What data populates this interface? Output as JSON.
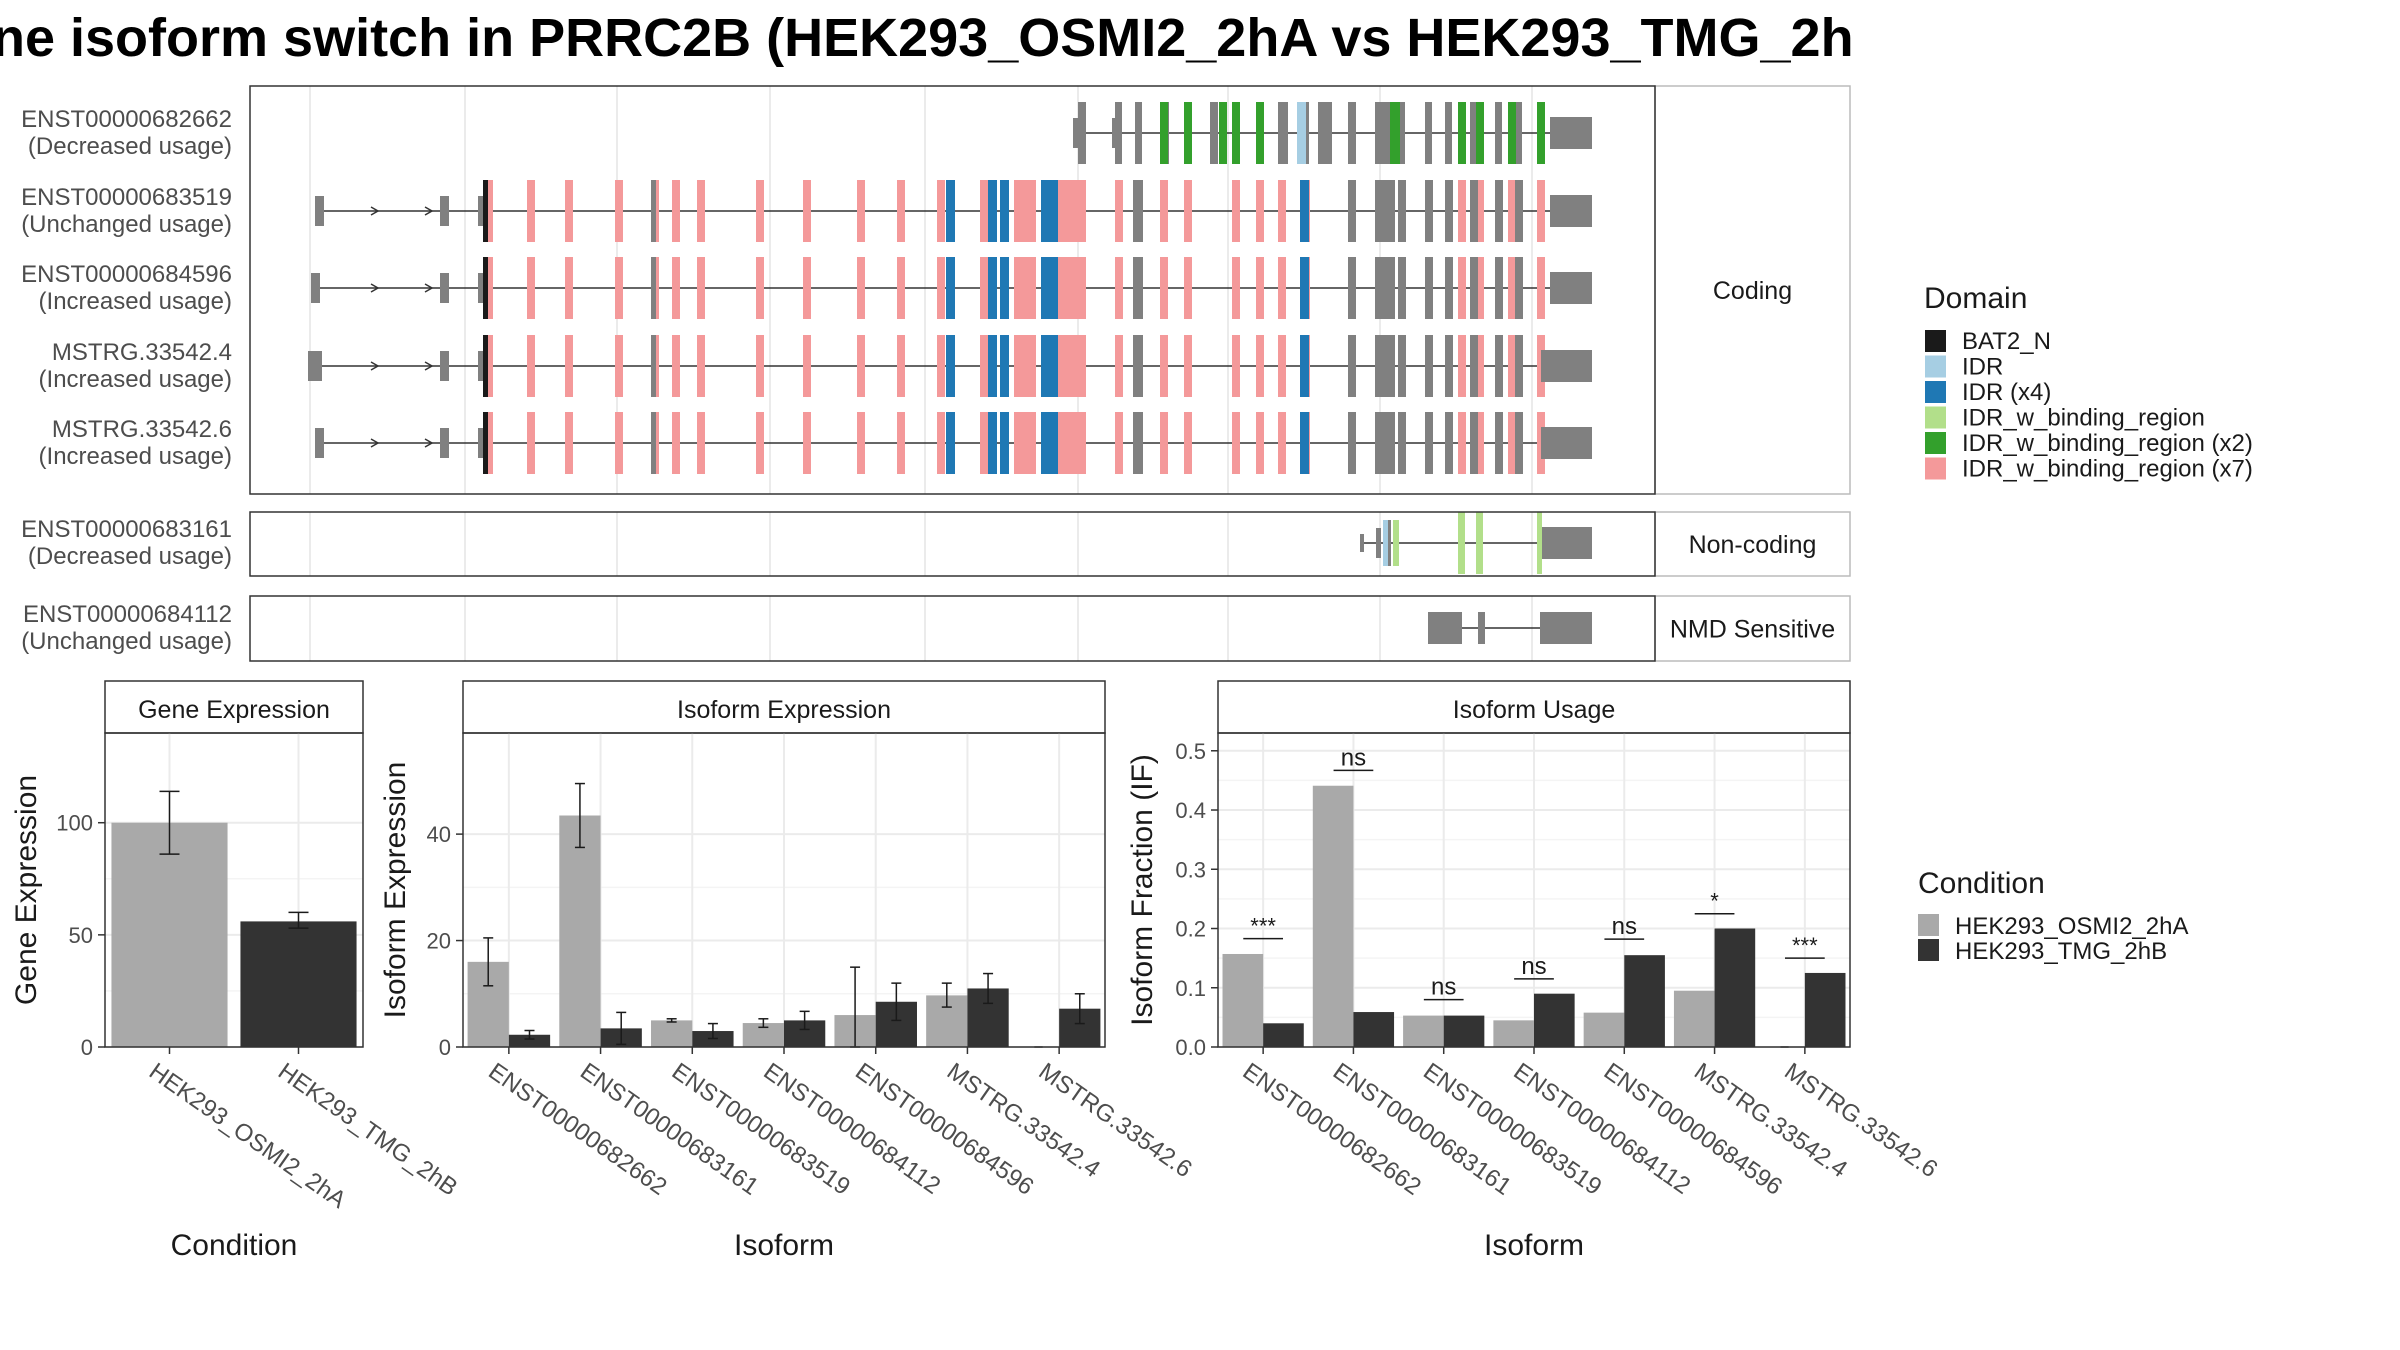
{
  "title": "ne isoform switch in PRRC2B (HEK293_OSMI2_2hA vs HEK293_TMG_2h",
  "colors": {
    "exon": "#808080",
    "cond_a": "#a9a9a9",
    "cond_b": "#333333",
    "panel_border": "#333333",
    "grid": "#ebebeb",
    "strip_bg": "#ffffff",
    "domains": {
      "BAT2_N": "#1a1a1a",
      "IDR": "#a6cee3",
      "IDR (x4)": "#1f78b4",
      "IDR_w_binding_region": "#b2df8a",
      "IDR_w_binding_region (x2)": "#33a02c",
      "IDR_w_binding_region (x7)": "#f4999a"
    }
  },
  "isoform_structure": {
    "groups": [
      "Coding",
      "Non-coding",
      "NMD Sensitive"
    ],
    "transcripts": [
      {
        "id": "ENST00000682662",
        "usage": "(Decreased usage)",
        "group": "Coding",
        "kind": "short_coding"
      },
      {
        "id": "ENST00000683519",
        "usage": "(Unchanged usage)",
        "group": "Coding",
        "kind": "full_coding"
      },
      {
        "id": "ENST00000684596",
        "usage": "(Increased usage)",
        "group": "Coding",
        "kind": "full_coding"
      },
      {
        "id": "MSTRG.33542.4",
        "usage": "(Increased usage)",
        "group": "Coding",
        "kind": "full_coding"
      },
      {
        "id": "MSTRG.33542.6",
        "usage": "(Increased usage)",
        "group": "Coding",
        "kind": "full_coding"
      },
      {
        "id": "ENST00000683161",
        "usage": "(Decreased usage)",
        "group": "Non-coding",
        "kind": "noncoding"
      },
      {
        "id": "ENST00000684112",
        "usage": "(Unchanged usage)",
        "group": "NMD Sensitive",
        "kind": "nmd"
      }
    ]
  },
  "legends": {
    "domain_title": "Domain",
    "domain_items": [
      "BAT2_N",
      "IDR",
      "IDR (x4)",
      "IDR_w_binding_region",
      "IDR_w_binding_region (x2)",
      "IDR_w_binding_region (x7)"
    ],
    "condition_title": "Condition",
    "condition_items": [
      "HEK293_OSMI2_2hA",
      "HEK293_TMG_2hB"
    ]
  },
  "chart_data": [
    {
      "type": "bar",
      "title": "Gene Expression",
      "xlabel": "Condition",
      "ylabel": "Gene Expression",
      "ylim": [
        0,
        140
      ],
      "yticks": [
        0,
        50,
        100
      ],
      "categories": [
        "HEK293_OSMI2_2hA",
        "HEK293_TMG_2hB"
      ],
      "values": [
        100,
        56
      ],
      "errors": [
        [
          86,
          114
        ],
        [
          53,
          60
        ]
      ]
    },
    {
      "type": "bar",
      "title": "Isoform Expression",
      "xlabel": "Isoform",
      "ylabel": "Isoform Expression",
      "ylim": [
        0,
        59
      ],
      "yticks": [
        0,
        20,
        40
      ],
      "categories": [
        "ENST00000682662",
        "ENST00000683161",
        "ENST00000683519",
        "ENST00000684112",
        "ENST00000684596",
        "MSTRG.33542.4",
        "MSTRG.33542.6"
      ],
      "series": [
        {
          "name": "HEK293_OSMI2_2hA",
          "values": [
            16,
            43.5,
            5,
            4.5,
            6,
            9.7,
            0
          ],
          "errors": [
            [
              11.5,
              20.5
            ],
            [
              37.5,
              49.5
            ],
            [
              4.7,
              5.3
            ],
            [
              3.7,
              5.3
            ],
            [
              0,
              15
            ],
            [
              7.5,
              12
            ],
            [
              0,
              0
            ]
          ]
        },
        {
          "name": "HEK293_TMG_2hB",
          "values": [
            2.3,
            3.5,
            3,
            5,
            8.5,
            11,
            7.2
          ],
          "errors": [
            [
              1.5,
              3.1
            ],
            [
              0.5,
              6.5
            ],
            [
              1.6,
              4.4
            ],
            [
              3.3,
              6.7
            ],
            [
              5,
              12
            ],
            [
              8.2,
              13.8
            ],
            [
              4.4,
              10
            ]
          ]
        }
      ]
    },
    {
      "type": "bar",
      "title": "Isoform Usage",
      "xlabel": "Isoform",
      "ylabel": "Isoform Fraction (IF)",
      "ylim": [
        0,
        0.53
      ],
      "yticks": [
        0.0,
        0.1,
        0.2,
        0.3,
        0.4,
        0.5
      ],
      "ytick_labels": [
        "0.0",
        "0.1",
        "0.2",
        "0.3",
        "0.4",
        "0.5"
      ],
      "categories": [
        "ENST00000682662",
        "ENST00000683161",
        "ENST00000683519",
        "ENST00000684112",
        "ENST00000684596",
        "MSTRG.33542.4",
        "MSTRG.33542.6"
      ],
      "series": [
        {
          "name": "HEK293_OSMI2_2hA",
          "values": [
            0.157,
            0.441,
            0.053,
            0.045,
            0.058,
            0.095,
            0
          ]
        },
        {
          "name": "HEK293_TMG_2hB",
          "values": [
            0.04,
            0.059,
            0.053,
            0.09,
            0.155,
            0.2,
            0.125
          ]
        }
      ],
      "significance": [
        "***",
        "ns",
        "ns",
        "ns",
        "ns",
        "*",
        "***"
      ],
      "sig_y": [
        0.183,
        0.467,
        0.08,
        0.115,
        0.182,
        0.225,
        0.15
      ]
    }
  ]
}
